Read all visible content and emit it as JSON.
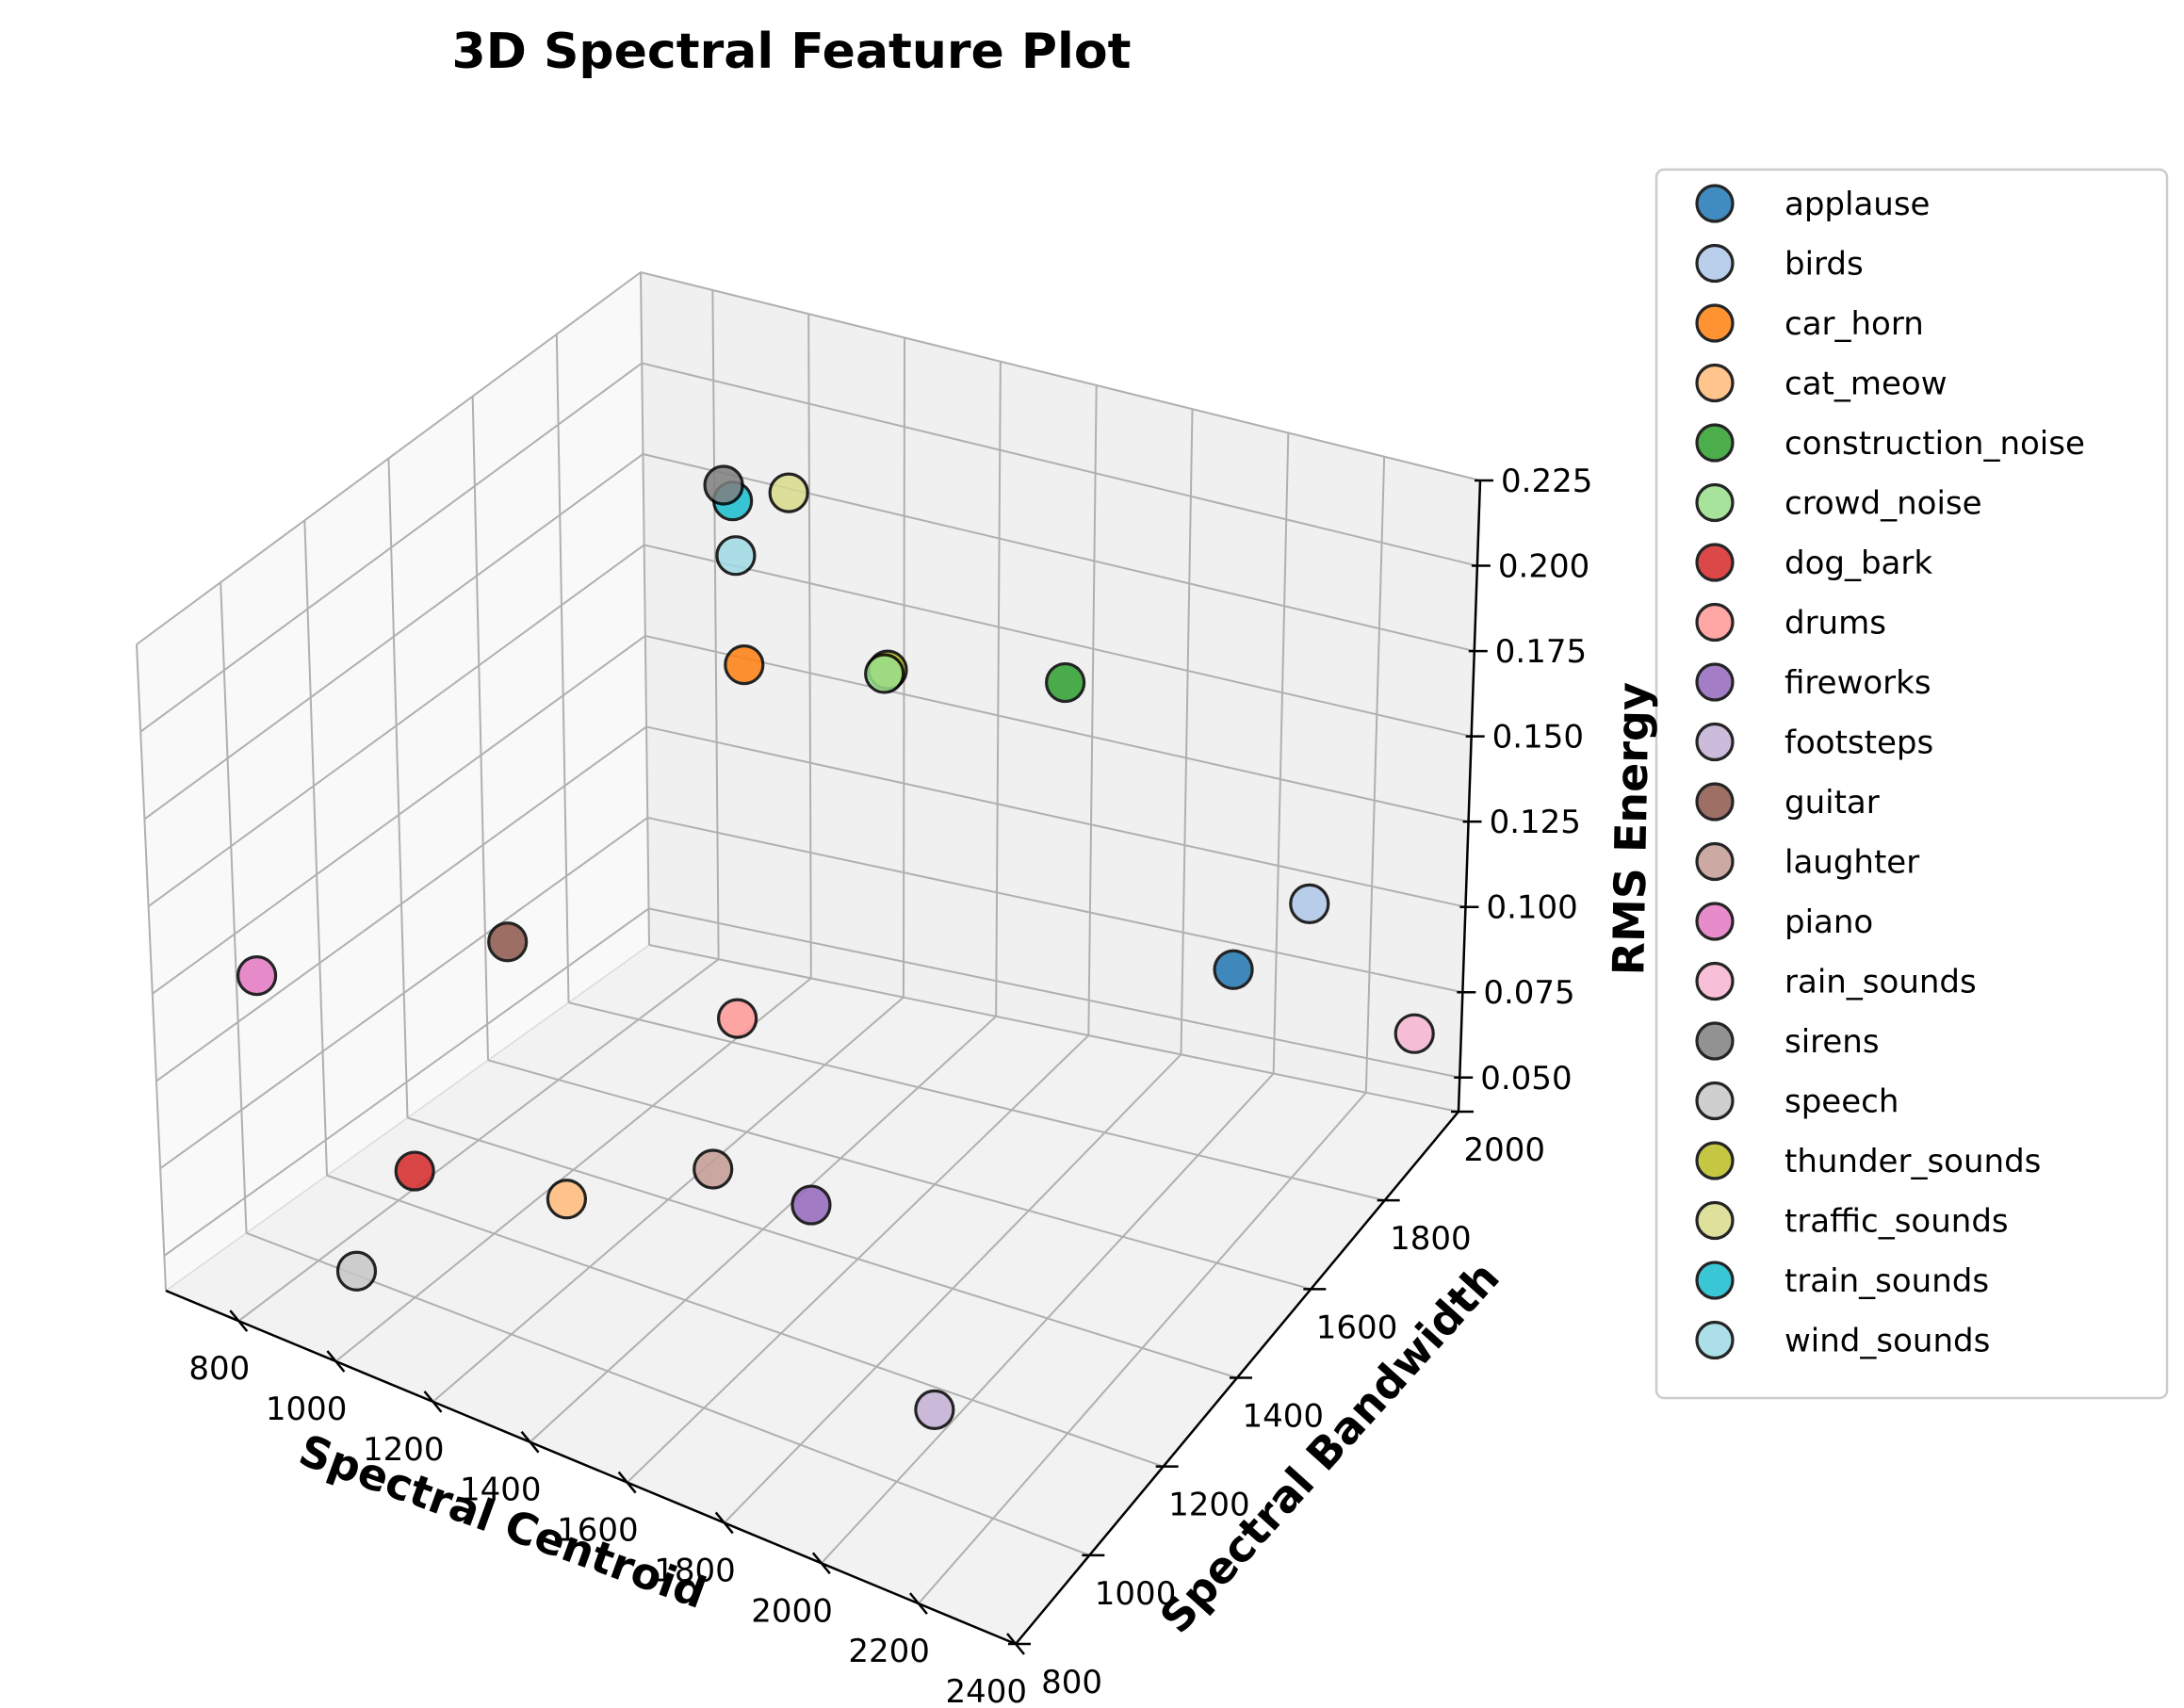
{
  "chart_data": {
    "type": "scatter",
    "title": "3D Spectral Feature Plot",
    "xlabel": "Spectral Centroid",
    "ylabel": "Spectral Bandwidth",
    "zlabel": "RMS Energy",
    "xlim": [
      650,
      2400
    ],
    "ylim": [
      800,
      2000
    ],
    "zlim": [
      0.04,
      0.225
    ],
    "xticks": [
      800,
      1000,
      1200,
      1400,
      1600,
      1800,
      2000,
      2200,
      2400
    ],
    "yticks": [
      800,
      1000,
      1200,
      1400,
      1600,
      1800,
      2000
    ],
    "zticks": [
      0.05,
      0.075,
      0.1,
      0.125,
      0.15,
      0.175,
      0.2,
      0.225
    ],
    "xtick_labels": [
      "800",
      "1000",
      "1200",
      "1400",
      "1600",
      "1800",
      "2000",
      "2200",
      "2400"
    ],
    "ytick_labels": [
      "800",
      "1000",
      "1200",
      "1400",
      "1600",
      "1800",
      "2000"
    ],
    "ztick_labels": [
      "0.050",
      "0.075",
      "0.100",
      "0.125",
      "0.150",
      "0.175",
      "0.200",
      "0.225"
    ],
    "grid": true,
    "legend_position": "right",
    "series": [
      {
        "name": "applause",
        "color": "#1f77b4",
        "x": 2260,
        "y": 1550,
        "z": 0.14
      },
      {
        "name": "birds",
        "color": "#aec7e8",
        "x": 2300,
        "y": 1700,
        "z": 0.14
      },
      {
        "name": "car_horn",
        "color": "#ff7f0e",
        "x": 1050,
        "y": 1780,
        "z": 0.15
      },
      {
        "name": "cat_meow",
        "color": "#ffbb78",
        "x": 1280,
        "y": 1050,
        "z": 0.08
      },
      {
        "name": "construction_noise",
        "color": "#2ca02c",
        "x": 1550,
        "y": 1990,
        "z": 0.14
      },
      {
        "name": "crowd_noise",
        "color": "#98df8a",
        "x": 1260,
        "y": 1880,
        "z": 0.145
      },
      {
        "name": "dog_bark",
        "color": "#d62728",
        "x": 1050,
        "y": 950,
        "z": 0.085
      },
      {
        "name": "drums",
        "color": "#ff9896",
        "x": 1350,
        "y": 1400,
        "z": 0.1
      },
      {
        "name": "fireworks",
        "color": "#9467bd",
        "x": 1600,
        "y": 1280,
        "z": 0.07
      },
      {
        "name": "footsteps",
        "color": "#c5b0d5",
        "x": 2000,
        "y": 1100,
        "z": 0.05
      },
      {
        "name": "guitar",
        "color": "#8c564b",
        "x": 1000,
        "y": 1250,
        "z": 0.12
      },
      {
        "name": "laughter",
        "color": "#c49c94",
        "x": 1420,
        "y": 1250,
        "z": 0.075
      },
      {
        "name": "piano",
        "color": "#e377c2",
        "x": 780,
        "y": 900,
        "z": 0.13
      },
      {
        "name": "rain_sounds",
        "color": "#f7b6d2",
        "x": 2300,
        "y": 2000,
        "z": 0.06
      },
      {
        "name": "sirens",
        "color": "#7f7f7f",
        "x": 950,
        "y": 1850,
        "z": 0.19
      },
      {
        "name": "speech",
        "color": "#c7c7c7",
        "x": 1050,
        "y": 800,
        "z": 0.07
      },
      {
        "name": "thunder_sounds",
        "color": "#bcbd22",
        "x": 1265,
        "y": 1882,
        "z": 0.146
      },
      {
        "name": "traffic_sounds",
        "color": "#dbdb8d",
        "x": 1000,
        "y": 1950,
        "z": 0.18
      },
      {
        "name": "train_sounds",
        "color": "#17becf",
        "x": 960,
        "y": 1860,
        "z": 0.185
      },
      {
        "name": "wind_sounds",
        "color": "#9edae5",
        "x": 1000,
        "y": 1820,
        "z": 0.175
      }
    ]
  }
}
